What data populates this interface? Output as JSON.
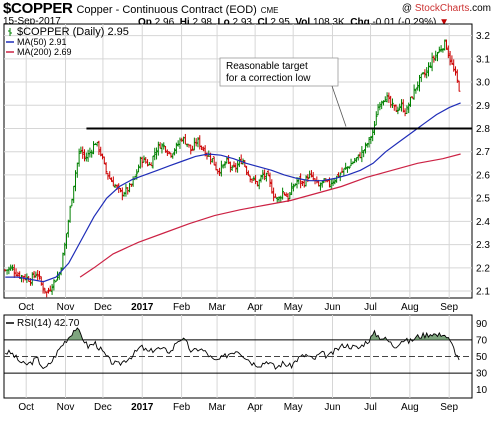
{
  "header": {
    "symbol": "$COPPER",
    "description": "Copper - Continuous Contract (EOD)",
    "exchange": "CME",
    "date": "15-Sep-2017",
    "open_label": "Op",
    "open": "2.96",
    "high_label": "Hi",
    "high": "2.98",
    "low_label": "Lo",
    "low": "2.93",
    "close_label": "Cl",
    "close": "2.95",
    "volume_label": "Vol",
    "volume": "108.3K",
    "change_label": "Chg",
    "change": "-0.01 (-0.29%)",
    "change_marker": "▼"
  },
  "brand": {
    "prefix": "@ ",
    "name": "StockCharts",
    "suffix": ".com"
  },
  "colors": {
    "up_bar": "#008000",
    "down_bar": "#cc0000",
    "ma50": "#1f2db8",
    "ma200": "#cc2244",
    "rsi_line": "#000000",
    "rsi_fill": "#5e8f5e",
    "grid": "#d6d6d6",
    "resistance": "#000000"
  },
  "chart_data": [
    {
      "type": "line",
      "name": "price",
      "legend": [
        {
          "label": "$COPPER (Daily) 2.95",
          "series": "price",
          "icon": "ohlc-bar-icon"
        },
        {
          "label": "MA(50) 2.91",
          "series": "ma50",
          "icon": "line-swatch-icon"
        },
        {
          "label": "MA(200) 2.69",
          "series": "ma200",
          "icon": "line-swatch-icon"
        }
      ],
      "x_axis_labels": [
        "Oct",
        "Nov",
        "Dec",
        "2017",
        "Feb",
        "Mar",
        "Apr",
        "May",
        "Jun",
        "Jul",
        "Aug",
        "Sep"
      ],
      "x_axis_positions": [
        1.5,
        32.5,
        62,
        93,
        124,
        152,
        182,
        212,
        243,
        273,
        304,
        335
      ],
      "xlim": [
        -16,
        353
      ],
      "y_ticks": [
        2.1,
        2.2,
        2.3,
        2.4,
        2.5,
        2.6,
        2.7,
        2.8,
        2.9,
        3.0,
        3.1,
        3.2
      ],
      "ylim": [
        2.07,
        3.25
      ],
      "y_axis_side": "right",
      "grid": true,
      "legend_position": "top-left",
      "price_anchors": [
        [
          -15,
          2.19
        ],
        [
          -10,
          2.2
        ],
        [
          -5,
          2.17
        ],
        [
          0,
          2.16
        ],
        [
          5,
          2.15
        ],
        [
          10,
          2.18
        ],
        [
          14,
          2.12
        ],
        [
          18,
          2.09
        ],
        [
          22,
          2.13
        ],
        [
          28,
          2.18
        ],
        [
          32,
          2.3
        ],
        [
          36,
          2.45
        ],
        [
          40,
          2.6
        ],
        [
          44,
          2.71
        ],
        [
          48,
          2.67
        ],
        [
          52,
          2.7
        ],
        [
          56,
          2.74
        ],
        [
          60,
          2.7
        ],
        [
          64,
          2.62
        ],
        [
          68,
          2.58
        ],
        [
          72,
          2.55
        ],
        [
          76,
          2.52
        ],
        [
          80,
          2.53
        ],
        [
          84,
          2.55
        ],
        [
          88,
          2.6
        ],
        [
          92,
          2.67
        ],
        [
          95,
          2.66
        ],
        [
          99,
          2.64
        ],
        [
          103,
          2.7
        ],
        [
          107,
          2.73
        ],
        [
          111,
          2.72
        ],
        [
          115,
          2.69
        ],
        [
          120,
          2.72
        ],
        [
          124,
          2.76
        ],
        [
          128,
          2.74
        ],
        [
          132,
          2.7
        ],
        [
          136,
          2.75
        ],
        [
          140,
          2.72
        ],
        [
          144,
          2.69
        ],
        [
          148,
          2.67
        ],
        [
          152,
          2.62
        ],
        [
          156,
          2.63
        ],
        [
          160,
          2.66
        ],
        [
          164,
          2.62
        ],
        [
          168,
          2.64
        ],
        [
          172,
          2.67
        ],
        [
          176,
          2.61
        ],
        [
          180,
          2.58
        ],
        [
          184,
          2.56
        ],
        [
          188,
          2.6
        ],
        [
          192,
          2.59
        ],
        [
          196,
          2.52
        ],
        [
          200,
          2.49
        ],
        [
          204,
          2.53
        ],
        [
          208,
          2.5
        ],
        [
          212,
          2.55
        ],
        [
          216,
          2.58
        ],
        [
          220,
          2.56
        ],
        [
          224,
          2.6
        ],
        [
          228,
          2.58
        ],
        [
          232,
          2.55
        ],
        [
          236,
          2.57
        ],
        [
          240,
          2.56
        ],
        [
          244,
          2.58
        ],
        [
          248,
          2.6
        ],
        [
          252,
          2.62
        ],
        [
          256,
          2.64
        ],
        [
          260,
          2.66
        ],
        [
          264,
          2.68
        ],
        [
          268,
          2.71
        ],
        [
          272,
          2.75
        ],
        [
          276,
          2.8
        ],
        [
          278,
          2.88
        ],
        [
          281,
          2.92
        ],
        [
          285,
          2.94
        ],
        [
          289,
          2.9
        ],
        [
          293,
          2.88
        ],
        [
          297,
          2.9
        ],
        [
          301,
          2.87
        ],
        [
          305,
          2.93
        ],
        [
          309,
          2.98
        ],
        [
          313,
          3.02
        ],
        [
          317,
          3.04
        ],
        [
          321,
          3.09
        ],
        [
          325,
          3.12
        ],
        [
          329,
          3.15
        ],
        [
          332,
          3.17
        ],
        [
          335,
          3.11
        ],
        [
          338,
          3.06
        ],
        [
          341,
          3.01
        ],
        [
          344,
          2.95
        ]
      ],
      "ma50_anchors": [
        [
          -15,
          2.16
        ],
        [
          -5,
          2.16
        ],
        [
          5,
          2.15
        ],
        [
          15,
          2.14
        ],
        [
          25,
          2.16
        ],
        [
          35,
          2.22
        ],
        [
          45,
          2.32
        ],
        [
          55,
          2.42
        ],
        [
          65,
          2.5
        ],
        [
          75,
          2.55
        ],
        [
          85,
          2.58
        ],
        [
          95,
          2.6
        ],
        [
          105,
          2.62
        ],
        [
          115,
          2.64
        ],
        [
          125,
          2.66
        ],
        [
          135,
          2.68
        ],
        [
          145,
          2.69
        ],
        [
          155,
          2.685
        ],
        [
          165,
          2.67
        ],
        [
          175,
          2.65
        ],
        [
          185,
          2.635
        ],
        [
          195,
          2.62
        ],
        [
          205,
          2.6
        ],
        [
          215,
          2.585
        ],
        [
          225,
          2.575
        ],
        [
          235,
          2.575
        ],
        [
          245,
          2.585
        ],
        [
          255,
          2.6
        ],
        [
          265,
          2.62
        ],
        [
          275,
          2.65
        ],
        [
          285,
          2.7
        ],
        [
          295,
          2.74
        ],
        [
          305,
          2.78
        ],
        [
          315,
          2.82
        ],
        [
          325,
          2.86
        ],
        [
          335,
          2.89
        ],
        [
          344,
          2.91
        ]
      ],
      "ma200_anchors": [
        [
          44,
          2.16
        ],
        [
          55,
          2.2
        ],
        [
          70,
          2.26
        ],
        [
          90,
          2.31
        ],
        [
          110,
          2.35
        ],
        [
          130,
          2.39
        ],
        [
          150,
          2.425
        ],
        [
          170,
          2.45
        ],
        [
          190,
          2.47
        ],
        [
          210,
          2.49
        ],
        [
          230,
          2.52
        ],
        [
          250,
          2.55
        ],
        [
          270,
          2.59
        ],
        [
          290,
          2.62
        ],
        [
          310,
          2.65
        ],
        [
          330,
          2.67
        ],
        [
          344,
          2.69
        ]
      ],
      "resistance_level": 2.8,
      "resistance_from_x": 49,
      "annotation": {
        "text_line1": "Reasonable target",
        "text_line2": "for a correction low"
      }
    },
    {
      "type": "line",
      "name": "rsi",
      "legend": [
        {
          "label": "RSI(14) 42.70",
          "series": "rsi",
          "icon": "line-swatch-icon"
        }
      ],
      "y_ticks": [
        10,
        30,
        50,
        70,
        90
      ],
      "ylim": [
        0,
        100
      ],
      "reference_lines": [
        30,
        50,
        70
      ],
      "x_axis_labels": [
        "Oct",
        "Nov",
        "Dec",
        "2017",
        "Feb",
        "Mar",
        "Apr",
        "May",
        "Jun",
        "Jul",
        "Aug",
        "Sep"
      ],
      "rsi_anchors": [
        [
          -15,
          55
        ],
        [
          -10,
          54
        ],
        [
          -5,
          46
        ],
        [
          0,
          40
        ],
        [
          5,
          42
        ],
        [
          10,
          48
        ],
        [
          16,
          34
        ],
        [
          22,
          45
        ],
        [
          28,
          60
        ],
        [
          32,
          68
        ],
        [
          36,
          75
        ],
        [
          40,
          84
        ],
        [
          44,
          78
        ],
        [
          50,
          62
        ],
        [
          56,
          66
        ],
        [
          62,
          55
        ],
        [
          68,
          44
        ],
        [
          74,
          40
        ],
        [
          80,
          46
        ],
        [
          86,
          52
        ],
        [
          92,
          62
        ],
        [
          98,
          55
        ],
        [
          104,
          60
        ],
        [
          110,
          58
        ],
        [
          116,
          56
        ],
        [
          120,
          68
        ],
        [
          124,
          72
        ],
        [
          128,
          66
        ],
        [
          132,
          55
        ],
        [
          138,
          60
        ],
        [
          144,
          54
        ],
        [
          150,
          44
        ],
        [
          156,
          48
        ],
        [
          162,
          54
        ],
        [
          168,
          58
        ],
        [
          174,
          50
        ],
        [
          180,
          42
        ],
        [
          186,
          40
        ],
        [
          192,
          45
        ],
        [
          198,
          36
        ],
        [
          204,
          42
        ],
        [
          210,
          38
        ],
        [
          216,
          48
        ],
        [
          222,
          52
        ],
        [
          228,
          46
        ],
        [
          234,
          54
        ],
        [
          240,
          50
        ],
        [
          246,
          58
        ],
        [
          252,
          64
        ],
        [
          258,
          62
        ],
        [
          264,
          60
        ],
        [
          268,
          66
        ],
        [
          272,
          70
        ],
        [
          276,
          78
        ],
        [
          280,
          74
        ],
        [
          286,
          70
        ],
        [
          292,
          62
        ],
        [
          298,
          70
        ],
        [
          304,
          68
        ],
        [
          310,
          74
        ],
        [
          316,
          76
        ],
        [
          322,
          78
        ],
        [
          326,
          75
        ],
        [
          330,
          78
        ],
        [
          334,
          72
        ],
        [
          338,
          62
        ],
        [
          342,
          48
        ],
        [
          344,
          42.7
        ]
      ]
    }
  ]
}
